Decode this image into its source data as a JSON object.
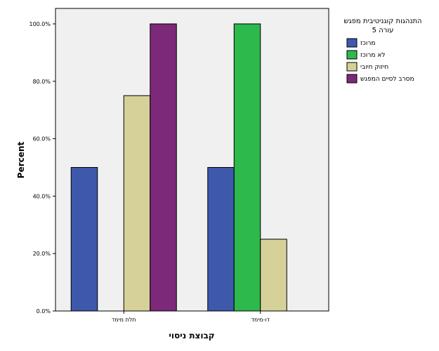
{
  "chart_data": {
    "type": "bar",
    "categories": [
      "תלת מימד",
      "דו-מימד"
    ],
    "series": [
      {
        "name": "מרוכז",
        "color": "#3e58ac",
        "values": [
          50,
          50
        ]
      },
      {
        "name": "לא מרוכז",
        "color": "#2db94b",
        "values": [
          0,
          100
        ]
      },
      {
        "name": "חיזוק חיובי",
        "color": "#d5d199",
        "values": [
          75,
          25
        ]
      },
      {
        "name": "מסרב לסיים המפגש",
        "color": "#7c2979",
        "values": [
          100,
          0
        ]
      }
    ],
    "xlabel": "קבוצת ניסוי",
    "ylabel": "Percent",
    "ylim": [
      0,
      100
    ],
    "yticks": [
      "0.0%",
      "20.0%",
      "40.0%",
      "60.0%",
      "80.0%",
      "100.0%"
    ],
    "legend": {
      "title_line1": "התנהגות קוגניטיבית מפגש",
      "title_line2": "עורה 5",
      "position": "right"
    },
    "plot_background": "#f0f0f0",
    "grid": false
  }
}
